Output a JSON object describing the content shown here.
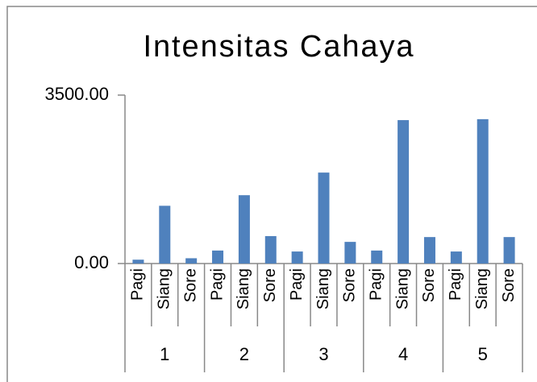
{
  "chart_data": {
    "type": "bar",
    "title": "Intensitas Cahaya",
    "groups": [
      {
        "name": "1",
        "categories": [
          "Pagi",
          "Siang",
          "Sore"
        ],
        "values": [
          80,
          1200,
          110
        ]
      },
      {
        "name": "2",
        "categories": [
          "Pagi",
          "Siang",
          "Sore"
        ],
        "values": [
          270,
          1420,
          570
        ]
      },
      {
        "name": "3",
        "categories": [
          "Pagi",
          "Siang",
          "Sore"
        ],
        "values": [
          250,
          1890,
          450
        ]
      },
      {
        "name": "4",
        "categories": [
          "Pagi",
          "Siang",
          "Sore"
        ],
        "values": [
          270,
          2980,
          550
        ]
      },
      {
        "name": "5",
        "categories": [
          "Pagi",
          "Siang",
          "Sore"
        ],
        "values": [
          250,
          3000,
          550
        ]
      }
    ],
    "color": "#4f81bd",
    "ylim": [
      0,
      3500
    ],
    "yticks": [
      {
        "value": 0,
        "label": "0.00"
      },
      {
        "value": 3500,
        "label": "3500.00"
      }
    ]
  }
}
